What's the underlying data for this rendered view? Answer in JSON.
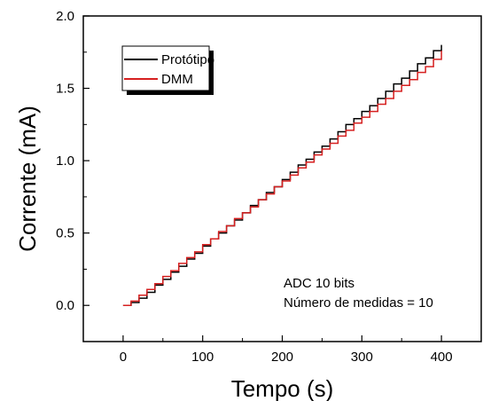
{
  "chart_data": {
    "type": "line",
    "xlabel": "Tempo (s)",
    "ylabel": "Corrente (mA)",
    "xlim": [
      -50,
      450
    ],
    "ylim": [
      -0.25,
      2.0
    ],
    "xticks": [
      0,
      100,
      200,
      300,
      400
    ],
    "yticks": [
      0.0,
      0.5,
      1.0,
      1.5,
      2.0
    ],
    "xtick_labels": [
      "0",
      "100",
      "200",
      "300",
      "400"
    ],
    "ytick_labels": [
      "0.0",
      "0.5",
      "1.0",
      "1.5",
      "2.0"
    ],
    "grid": false,
    "legend_position": "top-left",
    "annotations": [
      "ADC 10 bits",
      "Número de medidas = 10"
    ],
    "series": [
      {
        "name": "Protótipo",
        "color": "#000000",
        "x": [
          0,
          10,
          20,
          30,
          40,
          50,
          60,
          70,
          80,
          90,
          100,
          110,
          120,
          130,
          140,
          150,
          160,
          170,
          180,
          190,
          200,
          210,
          220,
          230,
          240,
          250,
          260,
          270,
          280,
          290,
          300,
          310,
          320,
          330,
          340,
          350,
          360,
          370,
          380,
          390,
          400
        ],
        "values": [
          0.0,
          0.02,
          0.05,
          0.09,
          0.14,
          0.18,
          0.23,
          0.27,
          0.32,
          0.36,
          0.41,
          0.46,
          0.5,
          0.55,
          0.59,
          0.64,
          0.69,
          0.73,
          0.78,
          0.82,
          0.87,
          0.92,
          0.97,
          1.01,
          1.06,
          1.1,
          1.15,
          1.2,
          1.25,
          1.29,
          1.34,
          1.38,
          1.43,
          1.48,
          1.53,
          1.57,
          1.62,
          1.67,
          1.71,
          1.76,
          1.8
        ]
      },
      {
        "name": "DMM",
        "color": "#d62020",
        "x": [
          0,
          10,
          20,
          30,
          40,
          50,
          60,
          70,
          80,
          90,
          100,
          110,
          120,
          130,
          140,
          150,
          160,
          170,
          180,
          190,
          200,
          210,
          220,
          230,
          240,
          250,
          260,
          270,
          280,
          290,
          300,
          310,
          320,
          330,
          340,
          350,
          360,
          370,
          380,
          390,
          400
        ],
        "values": [
          0.0,
          0.03,
          0.07,
          0.11,
          0.15,
          0.2,
          0.24,
          0.29,
          0.33,
          0.37,
          0.42,
          0.46,
          0.51,
          0.55,
          0.6,
          0.64,
          0.68,
          0.73,
          0.77,
          0.82,
          0.86,
          0.9,
          0.95,
          0.99,
          1.04,
          1.08,
          1.12,
          1.17,
          1.21,
          1.26,
          1.3,
          1.34,
          1.39,
          1.43,
          1.48,
          1.52,
          1.56,
          1.61,
          1.65,
          1.7,
          1.76
        ]
      }
    ]
  }
}
